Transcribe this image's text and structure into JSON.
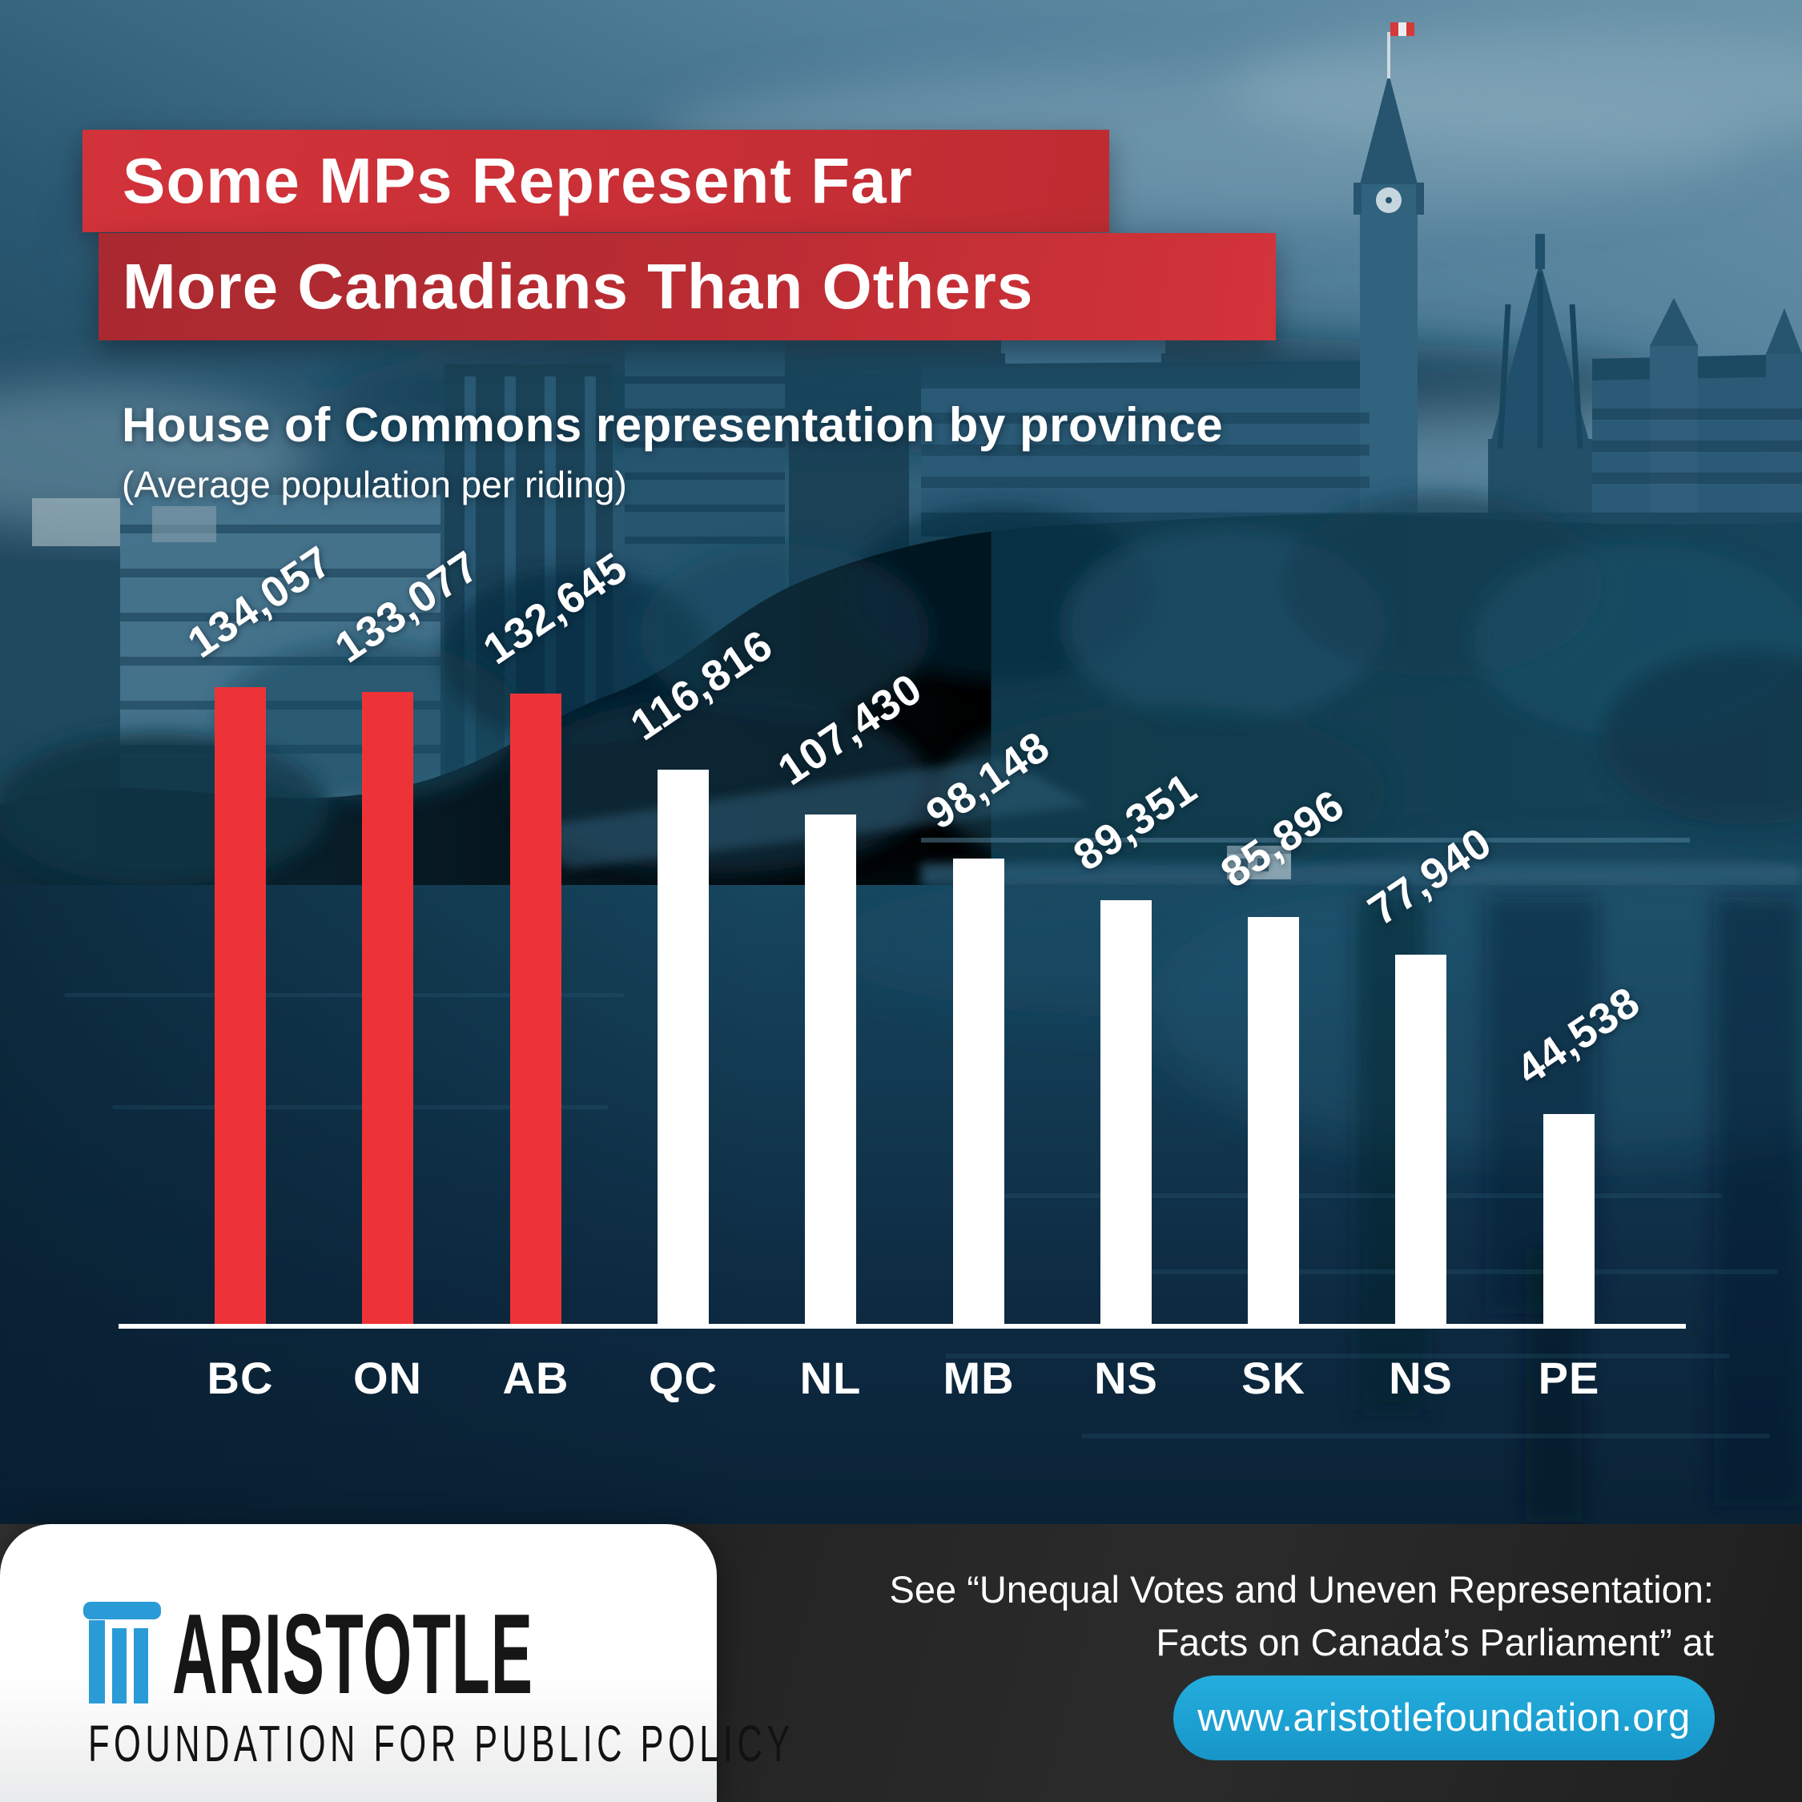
{
  "title": {
    "line1": "Some MPs Represent Far",
    "line2": "More Canadians Than Others"
  },
  "subtitle": "House of Commons representation by province",
  "subtitle_note": "(Average population per riding)",
  "chart_data": {
    "type": "bar",
    "title": "House of Commons representation by province",
    "subtitle": "(Average population per riding)",
    "categories": [
      "BC",
      "ON",
      "AB",
      "QC",
      "NL",
      "MB",
      "NS",
      "SK",
      "NS",
      "PE"
    ],
    "values": [
      134057,
      133077,
      132645,
      116816,
      107430,
      98148,
      89351,
      85896,
      77940,
      44538
    ],
    "value_labels": [
      "134,057",
      "133,077",
      "132,645",
      "116,816",
      "107,430",
      "98,148",
      "89,351",
      "85,896",
      "77,940",
      "44,538"
    ],
    "bar_colors": [
      "#ee3338",
      "#ee3338",
      "#ee3338",
      "#ffffff",
      "#ffffff",
      "#ffffff",
      "#ffffff",
      "#ffffff",
      "#ffffff",
      "#ffffff"
    ],
    "highlight_color": "#ee3338",
    "default_color": "#ffffff",
    "xlabel": "",
    "ylabel": "Average population per riding",
    "ylim": [
      0,
      134057
    ],
    "grid": false,
    "legend_position": "none",
    "value_label_rotation_deg": -34
  },
  "footer": {
    "logo_name": "ARISTOTLE",
    "logo_tagline": "FOUNDATION FOR PUBLIC POLICY",
    "logo_icon": "pillar-column-icon",
    "logo_icon_color": "#2b9bd7",
    "see_text_line1": "See “Unequal Votes and Uneven Representation:",
    "see_text_line2": "Facts on Canada’s Parliament” at",
    "url_button_label": "www.aristotlefoundation.org",
    "url_button_color": "#1aa7db"
  },
  "colors": {
    "bar_red": "#ee3338",
    "title_red_dark": "#a92930",
    "title_red_bright": "#d4333a",
    "footer_dark": "#262626",
    "water_deep": "#0a2235",
    "sky_light": "#6b94aa"
  }
}
